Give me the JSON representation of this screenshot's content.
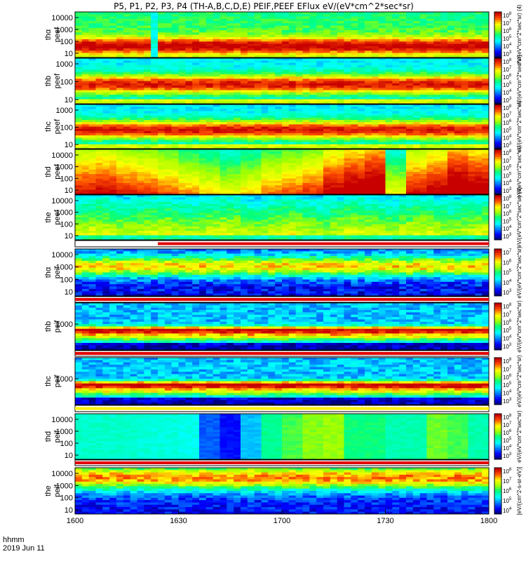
{
  "chart_data": {
    "type": "heatmap",
    "title": "P5, P1, P2, P3, P4 (TH-A,B,C,D,E) PEIF,PEEF EFlux eV/(eV*cm^2*sec*sr)",
    "x_axis": {
      "label_line1": "hhmm",
      "label_line2": "2019 Jun 11",
      "ticks": [
        "1600",
        "1630",
        "1700",
        "1730",
        "1800"
      ],
      "range_minutes": [
        0,
        120
      ]
    },
    "panels": [
      {
        "ylabel_top": "thα",
        "ylabel_bottom": "peef",
        "yticks": [
          "10000",
          "1000",
          "100",
          "10"
        ],
        "cbar_ticks": [
          "10^3",
          "10^4",
          "10^5",
          "10^6",
          "10^7",
          "10^8"
        ],
        "cbar_label": "eV/(eV*cm^2*sec*sr) (4)",
        "pattern": "electron-a"
      },
      {
        "ylabel_top": "thb",
        "ylabel_bottom": "peef",
        "yticks": [
          "1000",
          "100",
          "10"
        ],
        "cbar_ticks": [
          "10^3",
          "10^4",
          "10^5",
          "10^6",
          "10^7",
          "10^8"
        ],
        "cbar_label": "eV/(eV*cm^2*sec*sr)",
        "pattern": "electron-b"
      },
      {
        "ylabel_top": "thc",
        "ylabel_bottom": "peef",
        "yticks": [
          "1000",
          "100",
          "10"
        ],
        "cbar_ticks": [
          "10^3",
          "10^4",
          "10^5",
          "10^6",
          "10^7",
          "10^8"
        ],
        "cbar_label": "eV/(eV*cm^2*sec*sr)",
        "pattern": "electron-c"
      },
      {
        "ylabel_top": "thd",
        "ylabel_bottom": "peef",
        "yticks": [
          "10000",
          "1000",
          "100",
          "10"
        ],
        "cbar_ticks": [
          "10^3",
          "10^4",
          "10^5",
          "10^6",
          "10^7",
          "10^8"
        ],
        "cbar_label": "eV/(eV*cm^2*sec*sr)",
        "pattern": "electron-d"
      },
      {
        "ylabel_top": "the",
        "ylabel_bottom": "peef",
        "yticks": [
          "10000",
          "1000",
          "100",
          "10"
        ],
        "cbar_ticks": [
          "10^3",
          "10^4",
          "10^5",
          "10^6",
          "10^7",
          "10^8"
        ],
        "cbar_label": "eV/(eV*cm^2*sec*sr) (4)",
        "pattern": "electron-e"
      },
      {
        "ylabel_top": "thα",
        "ylabel_bottom": "peif",
        "yticks": [
          "10000",
          "1000",
          "100",
          "10"
        ],
        "cbar_ticks": [
          "10^3",
          "10^4",
          "10^5",
          "10^6",
          "10^7"
        ],
        "cbar_label": "eV/(eV*cm^2*sec*sr)",
        "pattern": "ion-a"
      },
      {
        "ylabel_top": "thb",
        "ylabel_bottom": "peif",
        "yticks": [
          "1000"
        ],
        "cbar_ticks": [
          "10^3",
          "10^4",
          "10^5",
          "10^6",
          "10^7",
          "10^8"
        ],
        "cbar_label": "eV/(eV*cm^2*sec*sr)",
        "pattern": "ion-b"
      },
      {
        "ylabel_top": "thc",
        "ylabel_bottom": "peif",
        "yticks": [
          "1000"
        ],
        "cbar_ticks": [
          "10^3",
          "10^4",
          "10^5",
          "10^6",
          "10^7",
          "10^8"
        ],
        "cbar_label": "eV/(eV*cm^2*sec*sr)",
        "pattern": "ion-c"
      },
      {
        "ylabel_top": "thd",
        "ylabel_bottom": "peif",
        "yticks": [
          "10000",
          "1000",
          "100",
          "10"
        ],
        "cbar_ticks": [
          "10^3",
          "10^4",
          "10^5",
          "10^6",
          "10^7",
          "10^8"
        ],
        "cbar_label": "eV/(eV*cm^2*sec*sr)",
        "pattern": "ion-d"
      },
      {
        "ylabel_top": "the",
        "ylabel_bottom": "peif",
        "yticks": [
          "10000",
          "1000",
          "100",
          "10"
        ],
        "cbar_ticks": [
          "10^4",
          "10^5",
          "10^6",
          "10^7",
          "10^8"
        ],
        "cbar_label": "[eV/(cm^2-s-sr-eV)]",
        "pattern": "ion-e"
      }
    ]
  }
}
